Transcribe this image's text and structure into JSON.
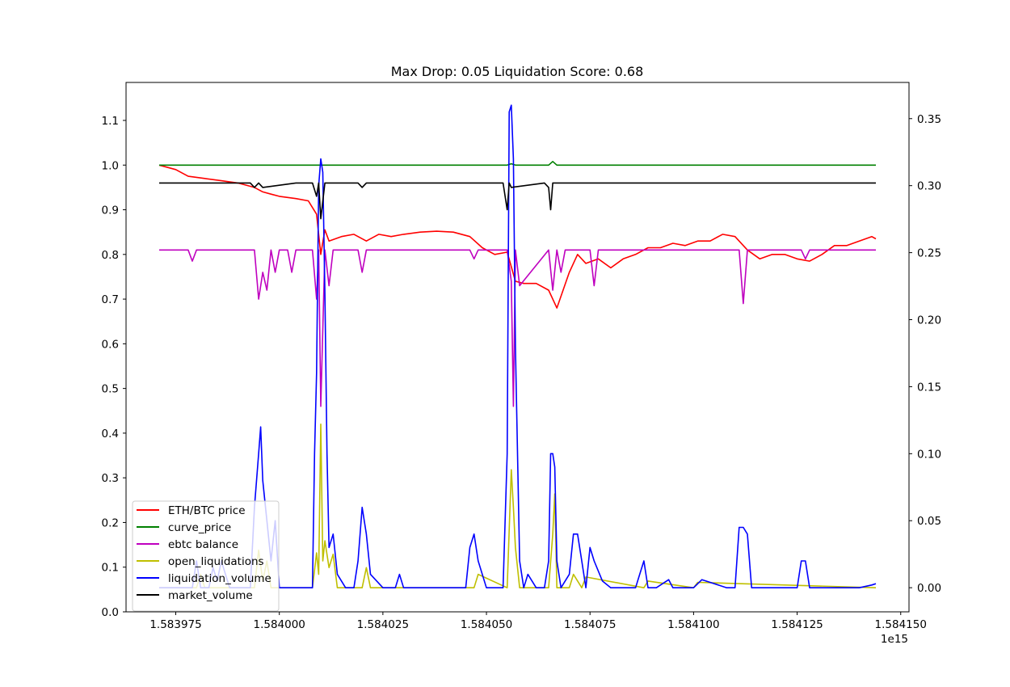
{
  "chart_data": {
    "type": "line",
    "title": "Max Drop: 0.05 Liquidation Score: 0.68",
    "x_scale_label": "1e15",
    "xlim": [
      1583963.0,
      1584152.0
    ],
    "ylim_left": [
      0.0,
      1.185
    ],
    "ylim_right": [
      -0.018,
      0.377
    ],
    "x_ticks": [
      1583975,
      1584000,
      1584025,
      1584050,
      1584075,
      1584100,
      1584125,
      1584150
    ],
    "x_tick_labels": [
      "1.583975",
      "1.584000",
      "1.584025",
      "1.584050",
      "1.584075",
      "1.584100",
      "1.584125",
      "1.584150"
    ],
    "y_ticks_left": [
      0.0,
      0.1,
      0.2,
      0.3,
      0.4,
      0.5,
      0.6,
      0.7,
      0.8,
      0.9,
      1.0,
      1.1
    ],
    "y_tick_labels_left": [
      "0.0",
      "0.1",
      "0.2",
      "0.3",
      "0.4",
      "0.5",
      "0.6",
      "0.7",
      "0.8",
      "0.9",
      "1.0",
      "1.1"
    ],
    "y_ticks_right": [
      0.0,
      0.05,
      0.1,
      0.15,
      0.2,
      0.25,
      0.3,
      0.35
    ],
    "y_tick_labels_right": [
      "0.00",
      "0.05",
      "0.10",
      "0.15",
      "0.20",
      "0.25",
      "0.30",
      "0.35"
    ],
    "grid": false,
    "legend_position": "lower-left",
    "series": [
      {
        "name": "ETH/BTC price",
        "color": "#ff0000",
        "axis": "left",
        "x": [
          1583971,
          1583975,
          1583978,
          1583982,
          1583986,
          1583990,
          1583994,
          1583996,
          1583998,
          1584000,
          1584004,
          1584007,
          1584009,
          1584010,
          1584011,
          1584012,
          1584015,
          1584018,
          1584021,
          1584024,
          1584027,
          1584030,
          1584034,
          1584038,
          1584042,
          1584046,
          1584049,
          1584052,
          1584055,
          1584057,
          1584059,
          1584062,
          1584065,
          1584067,
          1584070,
          1584072,
          1584074,
          1584077,
          1584080,
          1584083,
          1584086,
          1584089,
          1584092,
          1584095,
          1584098,
          1584101,
          1584104,
          1584107,
          1584110,
          1584113,
          1584116,
          1584119,
          1584122,
          1584125,
          1584128,
          1584131,
          1584134,
          1584137,
          1584140,
          1584143,
          1584144
        ],
        "y": [
          1.0,
          0.99,
          0.975,
          0.97,
          0.965,
          0.96,
          0.95,
          0.94,
          0.935,
          0.93,
          0.925,
          0.92,
          0.89,
          0.8,
          0.855,
          0.83,
          0.84,
          0.845,
          0.83,
          0.845,
          0.84,
          0.845,
          0.85,
          0.852,
          0.85,
          0.84,
          0.815,
          0.8,
          0.805,
          0.74,
          0.735,
          0.735,
          0.72,
          0.68,
          0.76,
          0.8,
          0.78,
          0.79,
          0.77,
          0.79,
          0.8,
          0.815,
          0.815,
          0.825,
          0.82,
          0.83,
          0.83,
          0.845,
          0.84,
          0.81,
          0.79,
          0.8,
          0.8,
          0.79,
          0.785,
          0.8,
          0.82,
          0.82,
          0.83,
          0.84,
          0.835
        ]
      },
      {
        "name": "curve_price",
        "color": "#008000",
        "axis": "left",
        "x": [
          1583971,
          1584055,
          1584056,
          1584057,
          1584065,
          1584066,
          1584067,
          1584144
        ],
        "y": [
          1.0,
          1.0,
          1.003,
          1.0,
          1.0,
          1.008,
          1.0,
          1.0
        ]
      },
      {
        "name": "ebtc balance",
        "color": "#bf00bf",
        "axis": "left",
        "x": [
          1583971,
          1583978,
          1583979,
          1583980,
          1583994,
          1583995,
          1583996,
          1583997,
          1583998,
          1583999,
          1584000,
          1584002,
          1584003,
          1584004,
          1584008,
          1584009,
          1584009.5,
          1584010,
          1584011,
          1584012,
          1584013,
          1584019,
          1584020,
          1584021,
          1584022,
          1584046,
          1584047,
          1584048,
          1584055,
          1584056,
          1584056.5,
          1584057,
          1584058,
          1584065,
          1584066,
          1584067,
          1584068,
          1584069,
          1584075,
          1584076,
          1584077,
          1584111,
          1584112,
          1584113,
          1584126,
          1584127,
          1584128,
          1584144
        ],
        "y": [
          0.81,
          0.81,
          0.785,
          0.81,
          0.81,
          0.7,
          0.76,
          0.72,
          0.81,
          0.76,
          0.81,
          0.81,
          0.76,
          0.81,
          0.81,
          0.7,
          0.81,
          0.46,
          0.81,
          0.73,
          0.81,
          0.81,
          0.76,
          0.81,
          0.81,
          0.81,
          0.79,
          0.81,
          0.81,
          0.74,
          0.46,
          0.81,
          0.73,
          0.81,
          0.72,
          0.81,
          0.76,
          0.81,
          0.81,
          0.73,
          0.81,
          0.81,
          0.69,
          0.81,
          0.81,
          0.79,
          0.81,
          0.81
        ]
      },
      {
        "name": "open_liquidations",
        "color": "#bfbf00",
        "axis": "right",
        "x": [
          1583971,
          1583980,
          1583981,
          1583982,
          1583994,
          1583995,
          1583996,
          1583997,
          1583998,
          1584008,
          1584009,
          1584009.5,
          1584010,
          1584010.5,
          1584011,
          1584012,
          1584013,
          1584014,
          1584020,
          1584021,
          1584022,
          1584047,
          1584048,
          1584055,
          1584056,
          1584056.5,
          1584057,
          1584058,
          1584065,
          1584066,
          1584066.5,
          1584067,
          1584070,
          1584071,
          1584073,
          1584074,
          1584088,
          1584089,
          1584100,
          1584101,
          1584144
        ],
        "y": [
          0.0,
          0.0,
          0.01,
          0.0,
          0.0,
          0.028,
          0.005,
          0.02,
          0.0,
          0.0,
          0.026,
          0.01,
          0.122,
          0.02,
          0.035,
          0.015,
          0.025,
          0.0,
          0.0,
          0.015,
          0.0,
          0.0,
          0.01,
          0.0,
          0.088,
          0.06,
          0.03,
          0.0,
          0.0,
          0.04,
          0.07,
          0.0,
          0.0,
          0.01,
          0.0,
          0.008,
          0.0,
          0.005,
          0.0,
          0.004,
          0.0
        ]
      },
      {
        "name": "liquidation_volume",
        "color": "#0000ff",
        "axis": "right",
        "x": [
          1583971,
          1583979,
          1583980,
          1583981,
          1583983,
          1583984,
          1583985,
          1583986,
          1583988,
          1583993,
          1583994,
          1583995,
          1583995.5,
          1583996,
          1583997,
          1583998,
          1583999,
          1584000,
          1584008,
          1584008.5,
          1584009,
          1584009.5,
          1584010,
          1584010.5,
          1584011,
          1584011.5,
          1584012,
          1584013,
          1584014,
          1584016,
          1584018,
          1584019,
          1584020,
          1584021,
          1584022,
          1584025,
          1584028,
          1584029,
          1584030,
          1584032,
          1584045,
          1584046,
          1584047,
          1584048,
          1584050,
          1584054,
          1584055,
          1584055.5,
          1584056,
          1584056.5,
          1584057,
          1584058,
          1584059,
          1584060,
          1584062,
          1584064,
          1584065,
          1584065.5,
          1584066,
          1584066.5,
          1584067,
          1584068,
          1584070,
          1584071,
          1584072,
          1584073,
          1584074,
          1584075,
          1584076,
          1584078,
          1584080,
          1584086,
          1584087,
          1584088,
          1584089,
          1584091,
          1584094,
          1584095,
          1584100,
          1584102,
          1584108,
          1584110,
          1584111,
          1584112,
          1584113,
          1584114,
          1584120,
          1584125,
          1584126,
          1584127,
          1584128,
          1584140,
          1584143,
          1584144
        ],
        "y": [
          0.0,
          0.0,
          0.02,
          0.0,
          0.0,
          0.015,
          0.005,
          0.02,
          0.0,
          0.0,
          0.06,
          0.1,
          0.12,
          0.08,
          0.05,
          0.02,
          0.05,
          0.0,
          0.0,
          0.1,
          0.16,
          0.3,
          0.32,
          0.31,
          0.22,
          0.1,
          0.03,
          0.04,
          0.01,
          0.0,
          0.0,
          0.02,
          0.06,
          0.04,
          0.01,
          0.0,
          0.0,
          0.01,
          0.0,
          0.0,
          0.0,
          0.03,
          0.04,
          0.02,
          0.0,
          0.0,
          0.1,
          0.355,
          0.36,
          0.32,
          0.18,
          0.02,
          0.0,
          0.01,
          0.0,
          0.0,
          0.02,
          0.1,
          0.1,
          0.09,
          0.02,
          0.0,
          0.01,
          0.04,
          0.04,
          0.02,
          0.0,
          0.03,
          0.02,
          0.005,
          0.0,
          0.0,
          0.01,
          0.02,
          0.0,
          0.0,
          0.006,
          0.0,
          0.0,
          0.006,
          0.0,
          0.0,
          0.045,
          0.045,
          0.04,
          0.0,
          0.0,
          0.0,
          0.02,
          0.02,
          0.0,
          0.0,
          0.002,
          0.003
        ]
      },
      {
        "name": "market_volume",
        "color": "#000000",
        "axis": "left",
        "x": [
          1583971,
          1583993,
          1583994,
          1583995,
          1583996,
          1584004,
          1584008,
          1584009,
          1584009.5,
          1584010,
          1584011,
          1584019,
          1584020,
          1584021,
          1584054,
          1584055,
          1584055.5,
          1584056,
          1584064,
          1584065,
          1584065.5,
          1584066,
          1584067,
          1584144
        ],
        "y": [
          0.96,
          0.96,
          0.95,
          0.96,
          0.95,
          0.96,
          0.96,
          0.93,
          0.96,
          0.88,
          0.96,
          0.96,
          0.95,
          0.96,
          0.96,
          0.9,
          0.96,
          0.95,
          0.96,
          0.95,
          0.9,
          0.96,
          0.96,
          0.96
        ]
      }
    ]
  }
}
